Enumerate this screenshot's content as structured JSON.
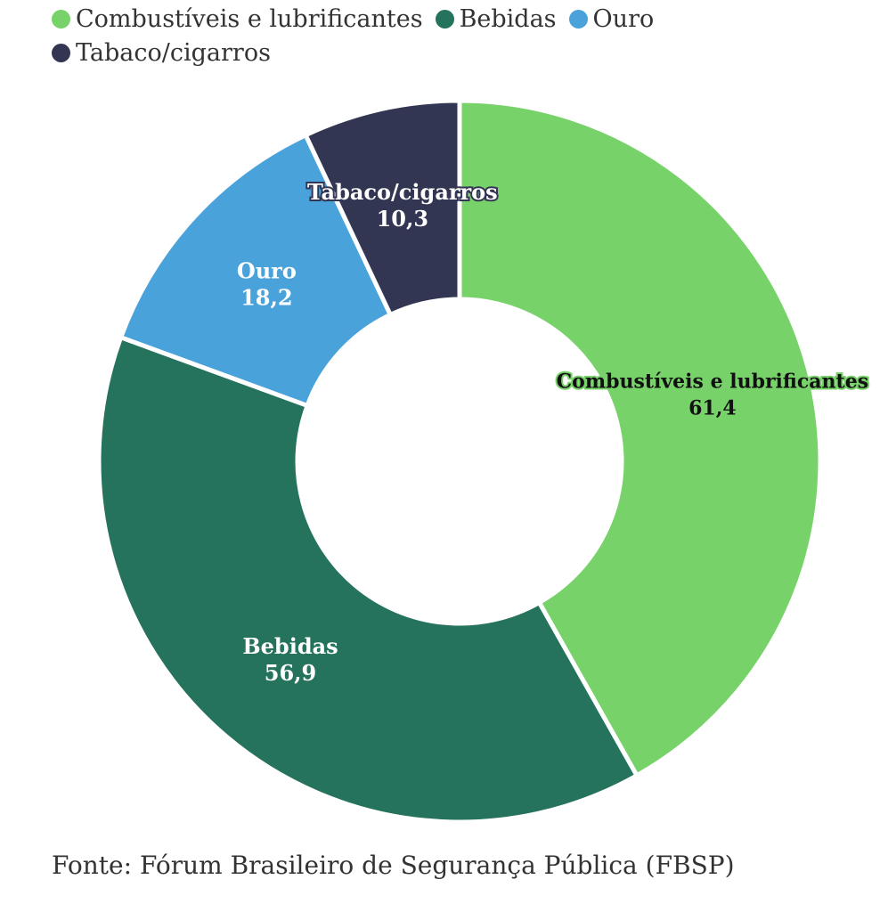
{
  "chart_data": {
    "type": "pie",
    "donut": true,
    "categories": [
      "Combustíveis e lubrificantes",
      "Bebidas",
      "Ouro",
      "Tabaco/cigarros"
    ],
    "values": [
      61.4,
      56.9,
      18.2,
      10.3
    ],
    "value_labels": [
      "61,4",
      "56,9",
      "18,2",
      "10,3"
    ],
    "colors": [
      "#78d26a",
      "#25735c",
      "#4aa2db",
      "#333653"
    ],
    "legend_position": "top-left",
    "source": "Fonte: Fórum Brasileiro de Segurança Pública (FBSP)"
  }
}
